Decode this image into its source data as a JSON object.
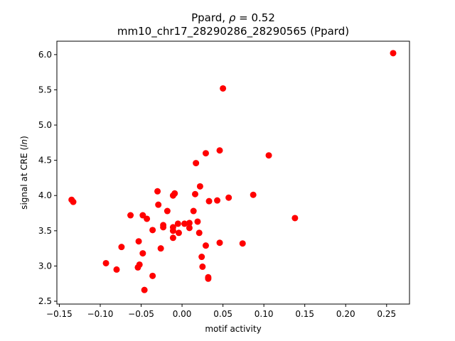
{
  "chart_data": {
    "type": "scatter",
    "title_line1_prefix": "Ppard, ",
    "title_line1_rho": "ρ",
    "title_line1_value": " = 0.52",
    "title_line2": "mm10_chr17_28290286_28290565 (Ppard)",
    "xlabel": "motif activity",
    "ylabel_prefix": "signal at CRE (",
    "ylabel_italic": "ln",
    "ylabel_suffix": ")",
    "xlim": [
      -0.153,
      0.278
    ],
    "ylim": [
      2.46,
      6.19
    ],
    "xticks": [
      -0.15,
      -0.1,
      -0.05,
      0.0,
      0.05,
      0.1,
      0.15,
      0.2,
      0.25
    ],
    "xtick_labels": [
      "−0.15",
      "−0.10",
      "−0.05",
      "0.00",
      "0.05",
      "0.10",
      "0.15",
      "0.20",
      "0.25"
    ],
    "yticks": [
      2.5,
      3.0,
      3.5,
      4.0,
      4.5,
      5.0,
      5.5,
      6.0
    ],
    "ytick_labels": [
      "2.5",
      "3.0",
      "3.5",
      "4.0",
      "4.5",
      "5.0",
      "5.5",
      "6.0"
    ],
    "marker_color": "#ff0000",
    "grid": false,
    "points": [
      {
        "x": 0.258,
        "y": 6.02
      },
      {
        "x": 0.05,
        "y": 5.52
      },
      {
        "x": 0.046,
        "y": 4.64
      },
      {
        "x": 0.029,
        "y": 4.6
      },
      {
        "x": 0.106,
        "y": 4.57
      },
      {
        "x": 0.017,
        "y": 4.46
      },
      {
        "x": 0.022,
        "y": 4.13
      },
      {
        "x": -0.03,
        "y": 4.06
      },
      {
        "x": -0.009,
        "y": 4.03
      },
      {
        "x": -0.011,
        "y": 4.0
      },
      {
        "x": 0.016,
        "y": 4.02
      },
      {
        "x": 0.087,
        "y": 4.01
      },
      {
        "x": 0.057,
        "y": 3.97
      },
      {
        "x": -0.135,
        "y": 3.94
      },
      {
        "x": -0.133,
        "y": 3.91
      },
      {
        "x": 0.033,
        "y": 3.92
      },
      {
        "x": 0.043,
        "y": 3.93
      },
      {
        "x": -0.029,
        "y": 3.87
      },
      {
        "x": -0.018,
        "y": 3.78
      },
      {
        "x": 0.014,
        "y": 3.78
      },
      {
        "x": -0.063,
        "y": 3.72
      },
      {
        "x": -0.048,
        "y": 3.72
      },
      {
        "x": -0.043,
        "y": 3.67
      },
      {
        "x": 0.138,
        "y": 3.68
      },
      {
        "x": 0.019,
        "y": 3.63
      },
      {
        "x": 0.003,
        "y": 3.6
      },
      {
        "x": -0.005,
        "y": 3.6
      },
      {
        "x": 0.009,
        "y": 3.61
      },
      {
        "x": -0.023,
        "y": 3.58
      },
      {
        "x": -0.023,
        "y": 3.55
      },
      {
        "x": -0.011,
        "y": 3.55
      },
      {
        "x": 0.009,
        "y": 3.54
      },
      {
        "x": -0.036,
        "y": 3.51
      },
      {
        "x": -0.011,
        "y": 3.5
      },
      {
        "x": -0.004,
        "y": 3.47
      },
      {
        "x": 0.021,
        "y": 3.47
      },
      {
        "x": -0.011,
        "y": 3.4
      },
      {
        "x": -0.053,
        "y": 3.35
      },
      {
        "x": 0.046,
        "y": 3.33
      },
      {
        "x": 0.074,
        "y": 3.32
      },
      {
        "x": 0.029,
        "y": 3.29
      },
      {
        "x": -0.074,
        "y": 3.27
      },
      {
        "x": -0.026,
        "y": 3.25
      },
      {
        "x": -0.048,
        "y": 3.18
      },
      {
        "x": 0.024,
        "y": 3.13
      },
      {
        "x": -0.093,
        "y": 3.04
      },
      {
        "x": -0.052,
        "y": 3.02
      },
      {
        "x": -0.054,
        "y": 2.98
      },
      {
        "x": 0.025,
        "y": 2.99
      },
      {
        "x": -0.08,
        "y": 2.95
      },
      {
        "x": -0.036,
        "y": 2.86
      },
      {
        "x": 0.032,
        "y": 2.84
      },
      {
        "x": 0.032,
        "y": 2.82
      },
      {
        "x": -0.046,
        "y": 2.66
      }
    ]
  }
}
